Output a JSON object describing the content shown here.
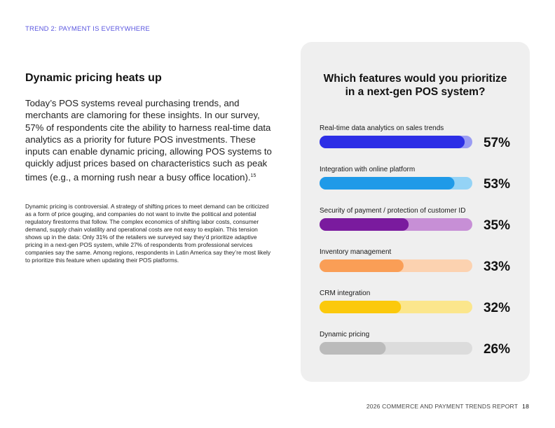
{
  "header": {
    "eyebrow": "TREND 2: PAYMENT IS EVERYWHERE"
  },
  "article": {
    "heading": "Dynamic pricing heats up",
    "intro": "Today’s POS systems reveal purchasing trends, and merchants are clamoring for these insights. In our survey, 57% of respondents cite the ability to harness real-time data analytics as a priority for future POS investments. These inputs can enable dynamic pricing, allowing POS systems to quickly adjust prices based on characteristics such as peak times (e.g., a morning rush near a busy office location).",
    "intro_footnote": "15",
    "body": "Dynamic pricing is controversial. A strategy of shifting prices to meet demand can be criticized as a form of price gouging, and companies do not want to invite the political and potential regulatory firestorms that follow. The complex economics of shifting labor costs, consumer demand, supply chain volatility and operational costs are not easy to explain. This tension shows up in the data: Only 31% of the retailers we surveyed say they’d prioritize adaptive pricing in a next-gen POS system, while 27% of respondents from professional services companies say the same. Among regions, respondents in Latin America say they’re most likely to prioritize this feature when updating their POS platforms."
  },
  "chart_data": {
    "type": "bar",
    "orientation": "horizontal",
    "title_lines": [
      "Which features would you prioritize",
      "in a next-gen POS system?"
    ],
    "xlim": [
      0,
      100
    ],
    "categories": [
      "Real-time data analytics on sales trends",
      "Integration with online platform",
      "Security of payment / protection of customer ID",
      "Inventory management",
      "CRM integration",
      "Dynamic pricing"
    ],
    "values": [
      57,
      53,
      35,
      33,
      32,
      26
    ],
    "value_labels": [
      "57%",
      "53%",
      "35%",
      "33%",
      "32%",
      "26%"
    ],
    "colors": [
      {
        "fill": "#2d2fe6",
        "track": "#9a9cf3"
      },
      {
        "fill": "#1f9ae8",
        "track": "#94d3f6"
      },
      {
        "fill": "#7a1b9e",
        "track": "#c78fd6"
      },
      {
        "fill": "#fa9e56",
        "track": "#fcd2b0"
      },
      {
        "fill": "#fbc90c",
        "track": "#fbe68c"
      },
      {
        "fill": "#bbbbbb",
        "track": "#dcdcdc"
      }
    ]
  },
  "footer": {
    "report": "2026 COMMERCE AND PAYMENT TRENDS REPORT",
    "page": "18"
  }
}
